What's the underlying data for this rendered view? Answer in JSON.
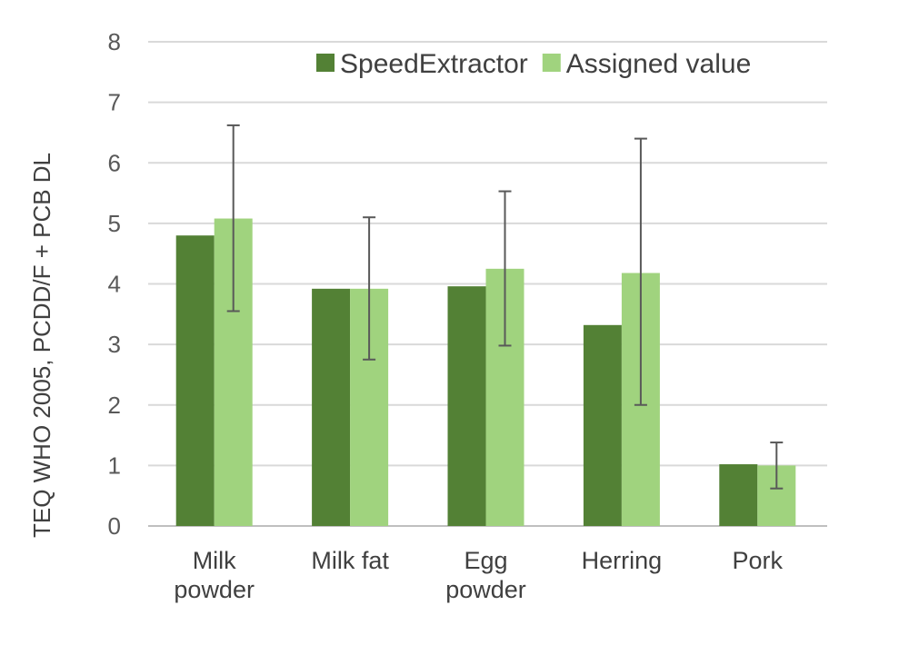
{
  "chart_data": {
    "type": "bar",
    "title": "",
    "xlabel": "",
    "ylabel": "TEQ WHO 2005, PCDD/F + PCB DL",
    "ylim": [
      0,
      8
    ],
    "yticks": [
      0,
      1,
      2,
      3,
      4,
      5,
      6,
      7,
      8
    ],
    "grid": true,
    "legend": "top-right",
    "categories": [
      [
        "Milk",
        "powder"
      ],
      [
        "Milk fat"
      ],
      [
        "Egg",
        "powder"
      ],
      [
        "Herring"
      ],
      [
        "Pork"
      ]
    ],
    "series": [
      {
        "name": "SpeedExtractor",
        "color": "#538135",
        "values": [
          4.8,
          3.92,
          3.96,
          3.32,
          1.02
        ]
      },
      {
        "name": "Assigned value",
        "color": "#a0d37e",
        "values": [
          5.08,
          3.92,
          4.25,
          4.18,
          1.0
        ],
        "error": [
          [
            3.55,
            6.62
          ],
          [
            2.75,
            5.1
          ],
          [
            2.98,
            5.53
          ],
          [
            2.0,
            6.4
          ],
          [
            0.62,
            1.38
          ]
        ]
      }
    ]
  }
}
